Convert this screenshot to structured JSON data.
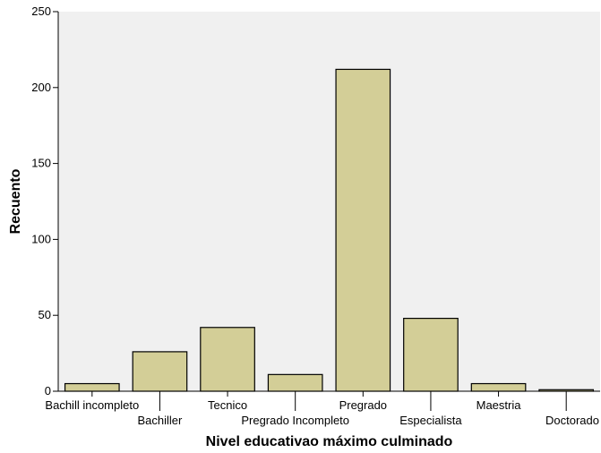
{
  "chart_data": {
    "type": "bar",
    "xlabel": "Nivel educativao máximo culminado",
    "ylabel": "Recuento",
    "ylim": [
      0,
      250
    ],
    "yticks": [
      0,
      50,
      100,
      150,
      200,
      250
    ],
    "categories": [
      "Bachill incompleto",
      "Bachiller",
      "Tecnico",
      "Pregrado Incompleto",
      "Pregrado",
      "Especialista",
      "Maestria",
      "Doctorado"
    ],
    "values": [
      5,
      26,
      42,
      11,
      212,
      48,
      5,
      1
    ],
    "grid": false,
    "colors": {
      "plot_background": "#f0f0f0",
      "bar_fill": "#d3ce97",
      "bar_stroke": "#000000"
    }
  }
}
